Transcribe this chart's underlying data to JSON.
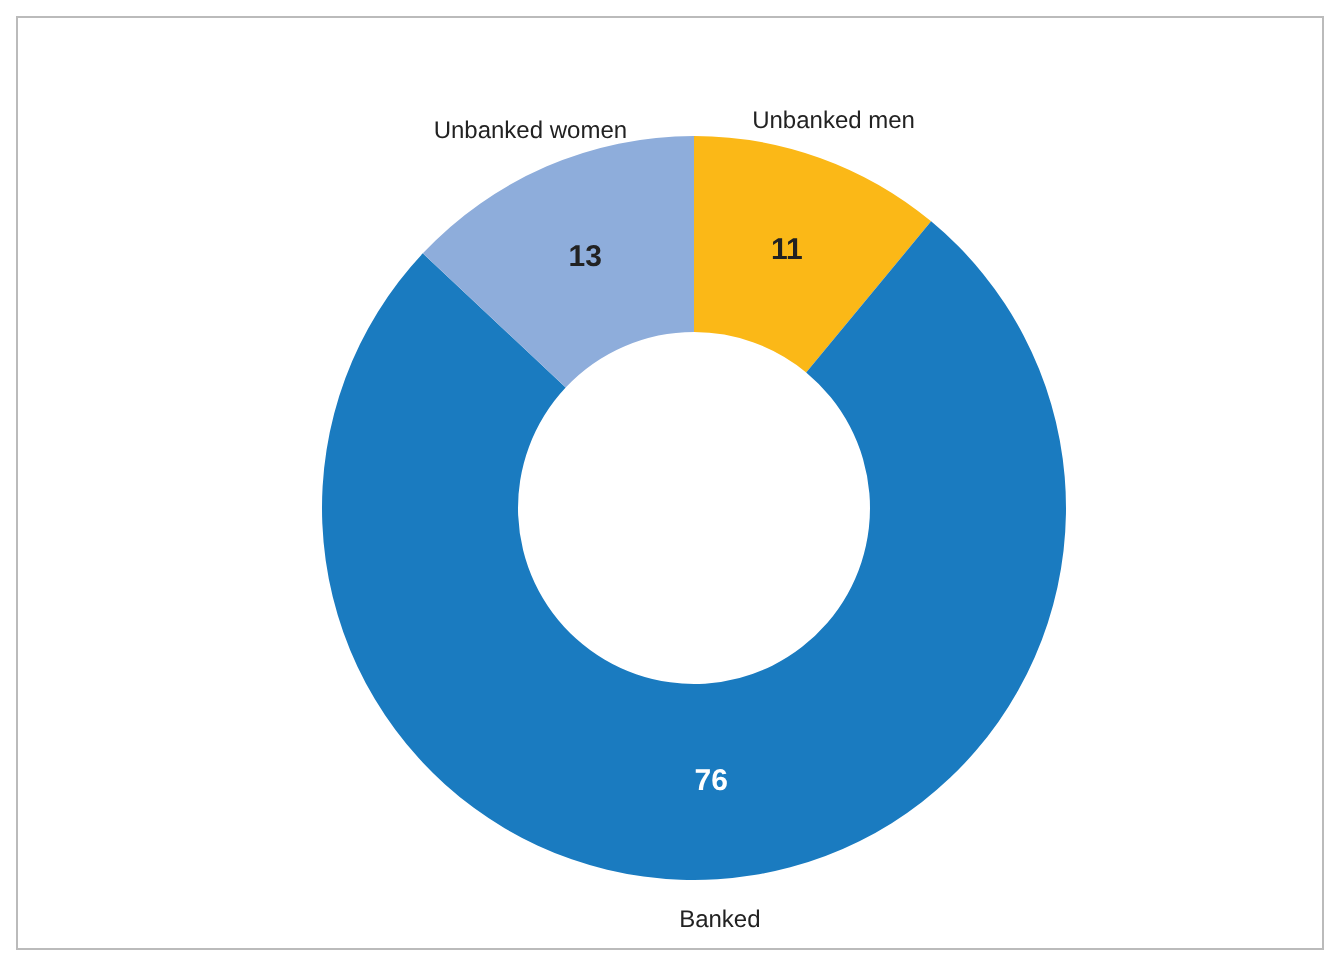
{
  "chart_data": {
    "type": "donut",
    "categories": [
      "Unbanked men",
      "Banked",
      "Unbanked women"
    ],
    "values": [
      11,
      76,
      13
    ],
    "colors": [
      "#fbb817",
      "#1a7bc0",
      "#8eaddb"
    ],
    "data_labels": true
  }
}
